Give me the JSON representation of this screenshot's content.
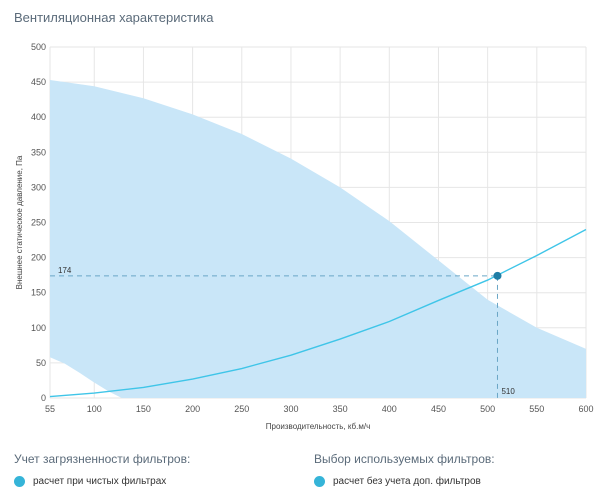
{
  "title": "Вентиляционная характеристика",
  "chart_data": {
    "type": "line",
    "xlabel": "Производительность, кб.м/ч",
    "ylabel": "Внешнее статическое давление, Па",
    "xlim": [
      55,
      600
    ],
    "ylim": [
      0,
      500
    ],
    "x_ticks": [
      55,
      100,
      150,
      200,
      250,
      300,
      350,
      400,
      450,
      500,
      550,
      600
    ],
    "y_ticks": [
      0,
      50,
      100,
      150,
      200,
      250,
      300,
      350,
      400,
      450,
      500
    ],
    "grid": true,
    "operating_region": {
      "upper_boundary": [
        [
          55,
          453
        ],
        [
          100,
          444
        ],
        [
          150,
          427
        ],
        [
          200,
          404
        ],
        [
          250,
          376
        ],
        [
          300,
          341
        ],
        [
          350,
          300
        ],
        [
          400,
          252
        ],
        [
          450,
          196
        ],
        [
          500,
          140
        ],
        [
          550,
          100
        ],
        [
          600,
          70
        ]
      ],
      "lower_boundary": [
        [
          55,
          58
        ],
        [
          70,
          49
        ],
        [
          85,
          36
        ],
        [
          100,
          22
        ],
        [
          115,
          9
        ],
        [
          128,
          0
        ]
      ]
    },
    "series": [
      {
        "x": [
          55,
          100,
          150,
          200,
          250,
          300,
          350,
          400,
          450,
          500,
          550,
          600
        ],
        "y": [
          2,
          7,
          15,
          27,
          42,
          61,
          84,
          109,
          139,
          168,
          203,
          240
        ],
        "color": "#3fc5e8"
      }
    ],
    "operating_point": {
      "x": 510,
      "y": 174
    },
    "annotations": {
      "x_label": "510",
      "y_label": "174"
    },
    "colors": {
      "region": "#c9e6f8",
      "curve": "#3fc5e8",
      "point": "#1f7da5",
      "guide": "#6aa6c6"
    }
  },
  "controls": {
    "filter_contamination": {
      "title": "Учет загрязненности фильтров:",
      "option": "расчет при чистых фильтрах"
    },
    "filter_selection": {
      "title": "Выбор используемых фильтров:",
      "option": "расчет без учета доп. фильтров"
    },
    "accent_color": "#35b4d8"
  }
}
